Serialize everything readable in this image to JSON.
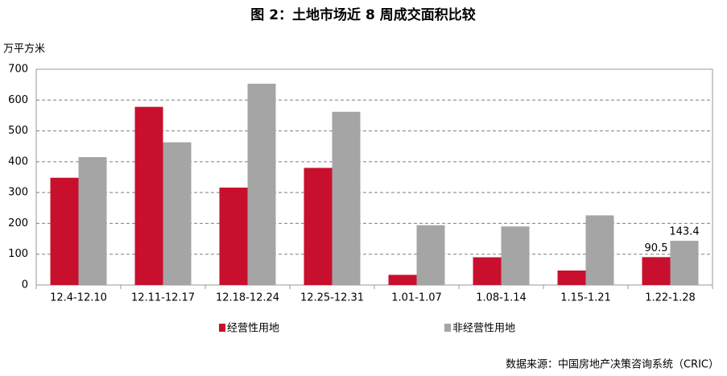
{
  "chart_data": {
    "type": "bar",
    "title": "图 2：土地市场近 8 周成交面积比较",
    "y_axis_label": "万平方米",
    "categories": [
      "12.4-12.10",
      "12.11-12.17",
      "12.18-12.24",
      "12.25-12.31",
      "1.01-1.07",
      "1.08-1.14",
      "1.15-1.21",
      "1.22-1.28"
    ],
    "series": [
      {
        "name": "经营性用地",
        "color": "#c8102e",
        "values": [
          348,
          578,
          316,
          380,
          33,
          90,
          47,
          90.5
        ],
        "value_labels": [
          null,
          null,
          null,
          null,
          null,
          null,
          null,
          "90.5"
        ]
      },
      {
        "name": "非经营性用地",
        "color": "#a5a5a5",
        "values": [
          415,
          463,
          653,
          562,
          194,
          190,
          226,
          143.4
        ],
        "value_labels": [
          null,
          null,
          null,
          null,
          null,
          null,
          null,
          "143.4"
        ]
      }
    ],
    "ylim": [
      0,
      700
    ],
    "yticks": [
      0,
      100,
      200,
      300,
      400,
      500,
      600,
      700
    ],
    "grid": true,
    "legend": "bottom",
    "source": "数据来源：中国房地产决策咨询系统（CRIC）"
  }
}
